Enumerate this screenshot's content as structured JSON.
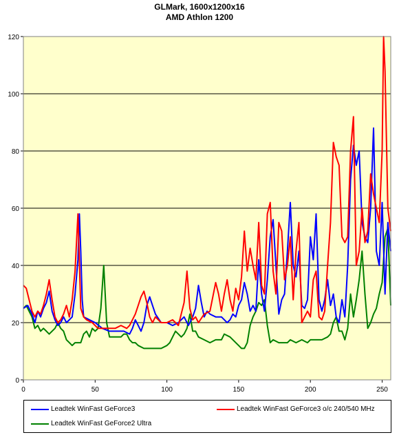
{
  "chart_data": {
    "type": "line",
    "title": "GLMark,  1600x1200x16",
    "subtitle": "AMD Athlon 1200",
    "xlim": [
      0,
      256
    ],
    "ylim": [
      0,
      120
    ],
    "xticks": [
      0,
      50,
      100,
      150,
      200,
      250
    ],
    "yticks": [
      0,
      20,
      40,
      60,
      80,
      100,
      120
    ],
    "grid": "horizontal",
    "background": "#ffffcc",
    "legend_position": "bottom",
    "series": [
      {
        "name": "Leadtek WinFast GeForce3",
        "color": "#0000ff",
        "points": [
          [
            0,
            25
          ],
          [
            3,
            26
          ],
          [
            6,
            23
          ],
          [
            8,
            20
          ],
          [
            10,
            24
          ],
          [
            12,
            22
          ],
          [
            14,
            25
          ],
          [
            16,
            27
          ],
          [
            18,
            31
          ],
          [
            20,
            24
          ],
          [
            22,
            21
          ],
          [
            24,
            19
          ],
          [
            26,
            20
          ],
          [
            28,
            22
          ],
          [
            30,
            20
          ],
          [
            32,
            21
          ],
          [
            34,
            22
          ],
          [
            36,
            30
          ],
          [
            38,
            42
          ],
          [
            39,
            58
          ],
          [
            40,
            45
          ],
          [
            41,
            28
          ],
          [
            42,
            22
          ],
          [
            46,
            21
          ],
          [
            50,
            20
          ],
          [
            55,
            18
          ],
          [
            60,
            17
          ],
          [
            65,
            17
          ],
          [
            70,
            17
          ],
          [
            74,
            16
          ],
          [
            76,
            18
          ],
          [
            78,
            21
          ],
          [
            80,
            19
          ],
          [
            82,
            17
          ],
          [
            84,
            20
          ],
          [
            86,
            26
          ],
          [
            88,
            29
          ],
          [
            90,
            26
          ],
          [
            92,
            23
          ],
          [
            96,
            20
          ],
          [
            100,
            20
          ],
          [
            104,
            19
          ],
          [
            108,
            20
          ],
          [
            112,
            22
          ],
          [
            115,
            19
          ],
          [
            118,
            22
          ],
          [
            120,
            25
          ],
          [
            122,
            33
          ],
          [
            124,
            27
          ],
          [
            126,
            22
          ],
          [
            128,
            24
          ],
          [
            130,
            23
          ],
          [
            134,
            22
          ],
          [
            138,
            22
          ],
          [
            142,
            20
          ],
          [
            144,
            21
          ],
          [
            146,
            23
          ],
          [
            148,
            22
          ],
          [
            150,
            26
          ],
          [
            152,
            28
          ],
          [
            154,
            34
          ],
          [
            156,
            30
          ],
          [
            158,
            24
          ],
          [
            160,
            26
          ],
          [
            162,
            24
          ],
          [
            164,
            42
          ],
          [
            166,
            30
          ],
          [
            168,
            24
          ],
          [
            170,
            35
          ],
          [
            172,
            50
          ],
          [
            174,
            56
          ],
          [
            176,
            40
          ],
          [
            178,
            23
          ],
          [
            180,
            28
          ],
          [
            182,
            30
          ],
          [
            184,
            45
          ],
          [
            186,
            62
          ],
          [
            188,
            40
          ],
          [
            190,
            36
          ],
          [
            192,
            45
          ],
          [
            194,
            26
          ],
          [
            196,
            25
          ],
          [
            198,
            28
          ],
          [
            200,
            50
          ],
          [
            202,
            42
          ],
          [
            204,
            58
          ],
          [
            206,
            28
          ],
          [
            208,
            24
          ],
          [
            210,
            28
          ],
          [
            212,
            35
          ],
          [
            214,
            26
          ],
          [
            216,
            30
          ],
          [
            218,
            22
          ],
          [
            220,
            20
          ],
          [
            222,
            28
          ],
          [
            224,
            22
          ],
          [
            226,
            40
          ],
          [
            228,
            70
          ],
          [
            230,
            82
          ],
          [
            232,
            75
          ],
          [
            234,
            80
          ],
          [
            236,
            55
          ],
          [
            238,
            50
          ],
          [
            240,
            48
          ],
          [
            242,
            60
          ],
          [
            244,
            88
          ],
          [
            246,
            45
          ],
          [
            248,
            40
          ],
          [
            250,
            62
          ],
          [
            252,
            30
          ],
          [
            254,
            55
          ],
          [
            256,
            45
          ]
        ]
      },
      {
        "name": "Leadtek WinFast GeForce3 o/c 240/540 MHz",
        "color": "#ff0000",
        "points": [
          [
            0,
            33
          ],
          [
            2,
            32
          ],
          [
            4,
            28
          ],
          [
            6,
            24
          ],
          [
            8,
            22
          ],
          [
            10,
            24
          ],
          [
            12,
            23
          ],
          [
            14,
            26
          ],
          [
            16,
            30
          ],
          [
            18,
            35
          ],
          [
            20,
            28
          ],
          [
            22,
            22
          ],
          [
            24,
            20
          ],
          [
            26,
            21
          ],
          [
            28,
            23
          ],
          [
            30,
            26
          ],
          [
            32,
            22
          ],
          [
            34,
            28
          ],
          [
            36,
            38
          ],
          [
            38,
            58
          ],
          [
            40,
            25
          ],
          [
            42,
            22
          ],
          [
            44,
            21
          ],
          [
            48,
            20
          ],
          [
            52,
            18
          ],
          [
            56,
            18
          ],
          [
            60,
            18
          ],
          [
            64,
            18
          ],
          [
            68,
            19
          ],
          [
            72,
            18
          ],
          [
            74,
            19
          ],
          [
            76,
            21
          ],
          [
            78,
            23
          ],
          [
            80,
            26
          ],
          [
            82,
            29
          ],
          [
            84,
            31
          ],
          [
            86,
            27
          ],
          [
            88,
            22
          ],
          [
            90,
            20
          ],
          [
            92,
            22
          ],
          [
            96,
            20
          ],
          [
            100,
            20
          ],
          [
            104,
            21
          ],
          [
            108,
            19
          ],
          [
            112,
            27
          ],
          [
            114,
            38
          ],
          [
            116,
            25
          ],
          [
            118,
            21
          ],
          [
            120,
            22
          ],
          [
            122,
            20
          ],
          [
            126,
            23
          ],
          [
            130,
            24
          ],
          [
            134,
            34
          ],
          [
            136,
            30
          ],
          [
            138,
            24
          ],
          [
            140,
            30
          ],
          [
            142,
            35
          ],
          [
            144,
            28
          ],
          [
            146,
            24
          ],
          [
            148,
            32
          ],
          [
            150,
            28
          ],
          [
            152,
            36
          ],
          [
            154,
            52
          ],
          [
            156,
            38
          ],
          [
            158,
            46
          ],
          [
            160,
            40
          ],
          [
            162,
            35
          ],
          [
            164,
            55
          ],
          [
            166,
            33
          ],
          [
            168,
            30
          ],
          [
            170,
            58
          ],
          [
            172,
            62
          ],
          [
            174,
            38
          ],
          [
            176,
            30
          ],
          [
            178,
            55
          ],
          [
            180,
            52
          ],
          [
            182,
            35
          ],
          [
            184,
            40
          ],
          [
            186,
            50
          ],
          [
            188,
            28
          ],
          [
            190,
            45
          ],
          [
            192,
            55
          ],
          [
            194,
            20
          ],
          [
            196,
            22
          ],
          [
            198,
            24
          ],
          [
            200,
            22
          ],
          [
            202,
            35
          ],
          [
            204,
            38
          ],
          [
            206,
            22
          ],
          [
            208,
            21
          ],
          [
            210,
            24
          ],
          [
            212,
            40
          ],
          [
            214,
            55
          ],
          [
            216,
            83
          ],
          [
            218,
            78
          ],
          [
            220,
            75
          ],
          [
            222,
            50
          ],
          [
            224,
            48
          ],
          [
            226,
            50
          ],
          [
            228,
            80
          ],
          [
            230,
            92
          ],
          [
            232,
            40
          ],
          [
            234,
            45
          ],
          [
            236,
            60
          ],
          [
            238,
            48
          ],
          [
            240,
            52
          ],
          [
            242,
            72
          ],
          [
            244,
            65
          ],
          [
            246,
            60
          ],
          [
            248,
            55
          ],
          [
            250,
            80
          ],
          [
            251,
            120
          ],
          [
            252,
            108
          ],
          [
            254,
            60
          ],
          [
            256,
            52
          ]
        ]
      },
      {
        "name": "Leadtek WinFast GeForce2 Ultra",
        "color": "#008000",
        "points": [
          [
            0,
            25
          ],
          [
            2,
            26
          ],
          [
            4,
            24
          ],
          [
            6,
            22
          ],
          [
            8,
            18
          ],
          [
            10,
            19
          ],
          [
            12,
            17
          ],
          [
            14,
            18
          ],
          [
            16,
            17
          ],
          [
            18,
            16
          ],
          [
            20,
            17
          ],
          [
            22,
            18
          ],
          [
            24,
            20
          ],
          [
            26,
            18
          ],
          [
            28,
            17
          ],
          [
            30,
            14
          ],
          [
            32,
            13
          ],
          [
            34,
            12
          ],
          [
            36,
            13
          ],
          [
            40,
            13
          ],
          [
            42,
            16
          ],
          [
            44,
            17
          ],
          [
            46,
            15
          ],
          [
            48,
            18
          ],
          [
            50,
            17
          ],
          [
            52,
            18
          ],
          [
            54,
            25
          ],
          [
            56,
            40
          ],
          [
            58,
            20
          ],
          [
            60,
            15
          ],
          [
            64,
            15
          ],
          [
            68,
            15
          ],
          [
            70,
            16
          ],
          [
            72,
            16
          ],
          [
            74,
            14
          ],
          [
            76,
            13
          ],
          [
            78,
            13
          ],
          [
            80,
            12
          ],
          [
            84,
            11
          ],
          [
            90,
            11
          ],
          [
            96,
            11
          ],
          [
            100,
            12
          ],
          [
            102,
            13
          ],
          [
            104,
            15
          ],
          [
            106,
            17
          ],
          [
            108,
            16
          ],
          [
            110,
            15
          ],
          [
            112,
            16
          ],
          [
            114,
            18
          ],
          [
            116,
            23
          ],
          [
            118,
            17
          ],
          [
            120,
            17
          ],
          [
            122,
            15
          ],
          [
            126,
            14
          ],
          [
            130,
            13
          ],
          [
            134,
            14
          ],
          [
            138,
            14
          ],
          [
            140,
            16
          ],
          [
            144,
            15
          ],
          [
            148,
            13
          ],
          [
            150,
            12
          ],
          [
            152,
            11
          ],
          [
            154,
            11
          ],
          [
            156,
            13
          ],
          [
            158,
            19
          ],
          [
            160,
            22
          ],
          [
            162,
            24
          ],
          [
            164,
            27
          ],
          [
            166,
            26
          ],
          [
            168,
            28
          ],
          [
            170,
            19
          ],
          [
            172,
            13
          ],
          [
            174,
            14
          ],
          [
            178,
            13
          ],
          [
            180,
            13
          ],
          [
            184,
            13
          ],
          [
            186,
            14
          ],
          [
            190,
            13
          ],
          [
            194,
            14
          ],
          [
            198,
            13
          ],
          [
            200,
            14
          ],
          [
            204,
            14
          ],
          [
            208,
            14
          ],
          [
            212,
            15
          ],
          [
            214,
            16
          ],
          [
            216,
            20
          ],
          [
            218,
            22
          ],
          [
            220,
            17
          ],
          [
            222,
            17
          ],
          [
            224,
            14
          ],
          [
            226,
            18
          ],
          [
            228,
            30
          ],
          [
            230,
            22
          ],
          [
            232,
            28
          ],
          [
            234,
            35
          ],
          [
            236,
            45
          ],
          [
            238,
            30
          ],
          [
            240,
            18
          ],
          [
            242,
            20
          ],
          [
            244,
            23
          ],
          [
            246,
            25
          ],
          [
            248,
            30
          ],
          [
            250,
            34
          ],
          [
            252,
            50
          ],
          [
            254,
            53
          ],
          [
            256,
            26
          ]
        ]
      }
    ]
  }
}
